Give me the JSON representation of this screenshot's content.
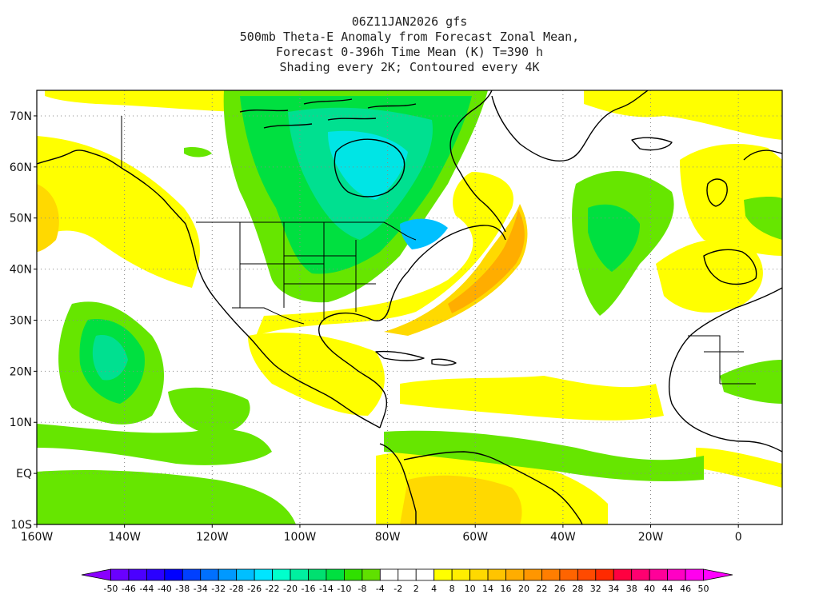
{
  "title": {
    "line1": "06Z11JAN2026 gfs",
    "line2": "500mb Theta-E Anomaly from Forecast Zonal Mean,",
    "line3": "Forecast 0-396h Time Mean (K) T=390 h",
    "line4": "Shading every 2K; Contoured every 4K"
  },
  "map": {
    "lon_range": [
      -160,
      10
    ],
    "lat_range": [
      -10,
      75
    ],
    "lon_ticks": [
      "160W",
      "140W",
      "120W",
      "100W",
      "80W",
      "60W",
      "40W",
      "20W",
      "0"
    ],
    "lat_ticks": [
      "70N",
      "60N",
      "50N",
      "40N",
      "30N",
      "20N",
      "10N",
      "EQ",
      "10S"
    ],
    "gridlines": "dotted"
  },
  "colorbar": {
    "labels": [
      "-50",
      "-46",
      "-44",
      "-40",
      "-38",
      "-34",
      "-32",
      "-28",
      "-26",
      "-22",
      "-20",
      "-16",
      "-14",
      "-10",
      "-8",
      "-4",
      "-2",
      "2",
      "4",
      "8",
      "10",
      "14",
      "16",
      "20",
      "22",
      "26",
      "28",
      "32",
      "34",
      "38",
      "40",
      "44",
      "46",
      "50"
    ],
    "colors": [
      "#8a00ff",
      "#6a00ff",
      "#4b00ff",
      "#2a00ff",
      "#0000ff",
      "#0040ff",
      "#0070ff",
      "#0099ff",
      "#00bfff",
      "#00e5ff",
      "#00ffcc",
      "#00f0a0",
      "#00e070",
      "#00e040",
      "#30e000",
      "#60e000",
      "#ffffff",
      "#ffffff",
      "#ffffff",
      "#ffff00",
      "#ffee00",
      "#ffd900",
      "#ffc400",
      "#ffad00",
      "#ff9600",
      "#ff7e00",
      "#ff6400",
      "#ff4a00",
      "#ff2a00",
      "#ff0040",
      "#ff0070",
      "#ff0099",
      "#ff00c4",
      "#ff00ee",
      "#ff00ff"
    ]
  },
  "palette": {
    "yellow": "#ffff00",
    "gold": "#ffd900",
    "orange": "#ffad00",
    "deep_orange": "#ff8c00",
    "green": "#66e600",
    "mid_green": "#00e040",
    "aqua_green": "#00e090",
    "cyan": "#00e5e5",
    "sky": "#00c0ff"
  }
}
